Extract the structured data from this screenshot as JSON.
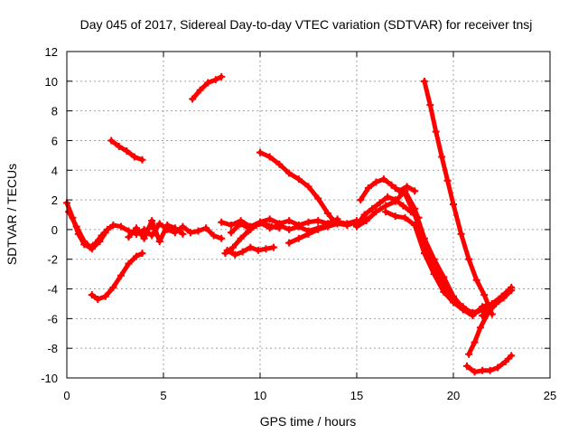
{
  "chart_data": {
    "type": "line",
    "title": "Day 045 of 2017, Sidereal Day-to-day VTEC variation (SDTVAR) for receiver tnsj",
    "xlabel": "GPS time / hours",
    "ylabel": "SDTVAR / TECUs",
    "xlim": [
      0,
      25
    ],
    "ylim": [
      -10,
      12
    ],
    "xticks": [
      0,
      5,
      10,
      15,
      20,
      25
    ],
    "yticks": [
      -10,
      -8,
      -6,
      -4,
      -2,
      0,
      2,
      4,
      6,
      8,
      10,
      12
    ],
    "grid": true,
    "marker": "plus",
    "color": "#ff0000",
    "series": [
      {
        "x": [
          0.0,
          0.3,
          0.6,
          0.9,
          1.2,
          1.5,
          1.8,
          2.1,
          2.4,
          2.8,
          3.2,
          3.6,
          4.0,
          4.4
        ],
        "y": [
          1.8,
          0.8,
          -0.3,
          -1.0,
          -1.2,
          -0.9,
          -0.4,
          0.0,
          0.3,
          0.2,
          -0.1,
          -0.3,
          -0.1,
          0.2
        ]
      },
      {
        "x": [
          0.1,
          0.5,
          0.9,
          1.3,
          1.7,
          2.0
        ],
        "y": [
          1.2,
          0.2,
          -0.8,
          -1.3,
          -0.8,
          -0.2
        ]
      },
      {
        "x": [
          1.3,
          1.6,
          2.0,
          2.4,
          2.8,
          3.2,
          3.6,
          3.9
        ],
        "y": [
          -4.4,
          -4.7,
          -4.5,
          -3.9,
          -3.1,
          -2.3,
          -1.8,
          -1.6
        ]
      },
      {
        "x": [
          2.3,
          2.7,
          3.1,
          3.5,
          3.9
        ],
        "y": [
          6.0,
          5.6,
          5.3,
          4.9,
          4.7
        ]
      },
      {
        "x": [
          4.0,
          4.4,
          4.8,
          5.2,
          5.6,
          6.0,
          6.4,
          6.8,
          7.2,
          7.6,
          8.0
        ],
        "y": [
          0.0,
          -0.4,
          0.4,
          0.0,
          -0.2,
          0.2,
          -0.2,
          -0.1,
          0.1,
          -0.4,
          -0.6
        ]
      },
      {
        "x": [
          3.2,
          3.6,
          4.0,
          4.4,
          4.8,
          5.2,
          5.6,
          6.0
        ],
        "y": [
          -0.5,
          0.1,
          -0.6,
          0.6,
          -0.8,
          0.3,
          0.1,
          -0.3
        ]
      },
      {
        "x": [
          6.5,
          6.9,
          7.3,
          7.7,
          8.0
        ],
        "y": [
          8.8,
          9.4,
          9.9,
          10.1,
          10.3
        ]
      },
      {
        "x": [
          8.2,
          8.6,
          9.0,
          9.4,
          9.8,
          10.2,
          10.6,
          11.0
        ],
        "y": [
          -1.6,
          -1.2,
          -0.6,
          -0.1,
          0.3,
          0.4,
          0.2,
          0.1
        ]
      },
      {
        "x": [
          8.3,
          8.7,
          9.1,
          9.5,
          9.9,
          10.3,
          10.7
        ],
        "y": [
          -1.4,
          -1.7,
          -1.5,
          -1.2,
          -1.4,
          -1.3,
          -1.2
        ]
      },
      {
        "x": [
          8.0,
          8.5,
          9.0,
          9.5,
          10.0,
          10.5,
          11.0,
          11.5,
          12.0,
          12.5,
          13.0,
          13.5,
          14.0
        ],
        "y": [
          0.5,
          0.3,
          0.6,
          0.2,
          0.5,
          0.7,
          0.4,
          0.6,
          0.3,
          0.5,
          0.6,
          0.4,
          0.7
        ]
      },
      {
        "x": [
          8.5,
          9.0,
          9.5,
          10.0,
          10.5,
          11.0,
          11.5,
          12.0,
          12.5,
          13.0,
          13.5,
          14.0,
          14.5,
          15.0
        ],
        "y": [
          -0.2,
          0.4,
          0.0,
          0.5,
          0.1,
          0.3,
          0.0,
          0.2,
          -0.1,
          0.1,
          0.3,
          0.5,
          0.4,
          0.6
        ]
      },
      {
        "x": [
          10.0,
          10.5,
          11.0,
          11.5,
          12.0,
          12.5,
          13.0,
          13.5,
          13.8
        ],
        "y": [
          5.2,
          4.9,
          4.4,
          3.8,
          3.4,
          2.9,
          2.1,
          1.1,
          0.6
        ]
      },
      {
        "x": [
          11.5,
          12.0,
          12.5,
          13.0,
          13.5,
          14.0,
          14.5,
          15.0,
          15.5
        ],
        "y": [
          -0.9,
          -0.6,
          -0.3,
          0.0,
          0.2,
          0.4,
          0.3,
          0.5,
          0.7
        ]
      },
      {
        "x": [
          15.0,
          15.4,
          15.8,
          16.2,
          16.6,
          17.0,
          17.4,
          17.8,
          18.2
        ],
        "y": [
          0.3,
          1.0,
          1.4,
          1.8,
          2.2,
          2.0,
          1.6,
          1.2,
          0.8
        ]
      },
      {
        "x": [
          15.2,
          15.6,
          16.0,
          16.4,
          16.8,
          17.2,
          17.6,
          18.0
        ],
        "y": [
          2.0,
          2.8,
          3.2,
          3.4,
          3.0,
          2.6,
          2.9,
          2.6
        ]
      },
      {
        "x": [
          15.0,
          15.5,
          16.0,
          16.5,
          17.0,
          17.5,
          18.0,
          18.5,
          19.0,
          19.5,
          20.0,
          20.5,
          21.0,
          21.5
        ],
        "y": [
          0.2,
          0.6,
          1.2,
          1.6,
          1.9,
          2.6,
          1.4,
          -0.6,
          -2.0,
          -3.2,
          -4.5,
          -5.3,
          -5.6,
          -5.4
        ]
      },
      {
        "x": [
          16.5,
          17.0,
          17.5,
          18.0,
          18.5,
          19.0,
          19.5,
          20.0,
          20.5,
          21.0,
          21.5,
          22.0
        ],
        "y": [
          1.2,
          0.9,
          0.8,
          0.3,
          -1.6,
          -3.0,
          -4.2,
          -4.9,
          -5.4,
          -5.8,
          -5.2,
          -5.0
        ]
      },
      {
        "x": [
          17.0,
          17.5,
          18.0,
          18.5,
          19.0,
          19.5,
          20.0,
          20.5,
          21.0,
          21.5,
          21.9
        ],
        "y": [
          2.8,
          2.4,
          1.0,
          -0.8,
          -2.6,
          -3.8,
          -4.7,
          -5.2,
          -5.7,
          -5.4,
          -5.3
        ]
      },
      {
        "x": [
          18.5,
          18.8,
          19.1,
          19.4,
          19.7,
          20.0,
          20.4,
          20.8,
          21.2,
          21.6,
          22.0
        ],
        "y": [
          10.0,
          8.4,
          6.6,
          4.9,
          3.3,
          1.7,
          -0.3,
          -2.0,
          -3.4,
          -4.4,
          -5.7
        ]
      },
      {
        "x": [
          20.8,
          21.1,
          21.4,
          21.8,
          22.2,
          22.6,
          23.0
        ],
        "y": [
          -8.4,
          -7.6,
          -6.6,
          -5.6,
          -5.0,
          -4.6,
          -4.1
        ]
      },
      {
        "x": [
          21.5,
          22.0,
          22.5,
          23.0
        ],
        "y": [
          -5.8,
          -5.0,
          -4.5,
          -3.9
        ]
      },
      {
        "x": [
          20.7,
          21.1,
          21.5,
          21.9,
          22.3,
          22.7,
          23.0
        ],
        "y": [
          -9.2,
          -9.6,
          -9.5,
          -9.5,
          -9.3,
          -8.9,
          -8.5
        ]
      }
    ]
  }
}
